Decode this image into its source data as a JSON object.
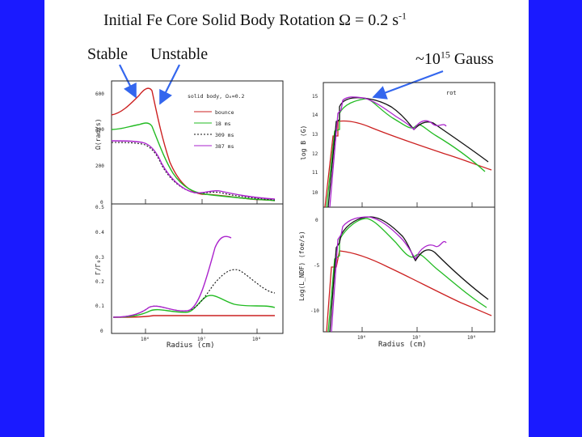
{
  "slide": {
    "title_prefix": "Initial Fe Core Solid Body Rotation ",
    "title_omega": "Ω",
    "title_eq": " = 0.2 s",
    "title_exp": "-1",
    "label_stable": "Stable",
    "label_unstable": "Unstable",
    "gauss_prefix": "~10",
    "gauss_exp": "15",
    "gauss_suffix": " Gauss"
  },
  "left_figure": {
    "top_ylabel": "Ω(rad/s)",
    "top_yticks": [
      "600",
      "400",
      "200",
      "0"
    ],
    "panel_label": "solid body, Ω₀=0.2",
    "legend": [
      "bounce",
      "18 ms",
      "309 ms",
      "387 ms"
    ],
    "bottom_ylabel": "Γ/Γ₀",
    "bottom_yticks": [
      "0.5",
      "0.4",
      "0.3",
      "0.2",
      "0.1",
      "0"
    ],
    "xticks": [
      "10⁶",
      "10⁷",
      "10⁸"
    ],
    "xlabel": "Radius (cm)"
  },
  "right_figure": {
    "top_ylabel": "log B (G)",
    "top_yticks": [
      "15",
      "14",
      "13",
      "12",
      "11",
      "10"
    ],
    "panel_label": "rot",
    "bottom_ylabel": "Log(L_NDF) (foe/s)",
    "bottom_yticks": [
      "0",
      "-5",
      "-10"
    ],
    "xticks": [
      "10⁶",
      "10⁷",
      "10⁸"
    ],
    "xlabel": "Radius (cm)"
  },
  "colors": {
    "blue_bar": "#1a1aff",
    "series_bounce": "#cc2020",
    "series_18ms": "#22bb22",
    "series_309ms": "#111111",
    "series_387ms": "#aa22cc",
    "arrow": "#3366ee"
  }
}
